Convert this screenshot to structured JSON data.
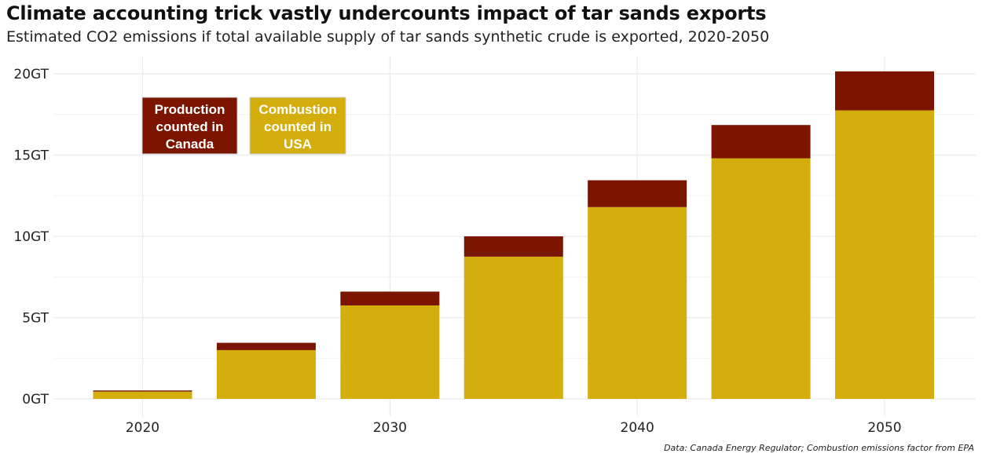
{
  "title": "Climate accounting trick vastly undercounts impact of tar sands exports",
  "subtitle": "Estimated CO2 emissions if total available supply of tar sands synthetic crude is exported, 2020-2050",
  "caption": "Data: Canada Energy Regulator; Combustion emissions factor from EPA",
  "colors": {
    "production": "#7b1500",
    "combustion": "#d4ae0c",
    "grid": "#ebebeb"
  },
  "chart_data": {
    "type": "bar",
    "stacked": true,
    "x": [
      2020,
      2025,
      2030,
      2035,
      2040,
      2045,
      2050
    ],
    "series": [
      {
        "name": "Combustion counted in USA",
        "color": "#d4ae0c",
        "values": [
          0.45,
          3.0,
          5.75,
          8.75,
          11.8,
          14.8,
          17.75
        ]
      },
      {
        "name": "Production counted in Canada",
        "color": "#7b1500",
        "values": [
          0.07,
          0.45,
          0.85,
          1.25,
          1.65,
          2.05,
          2.4
        ]
      }
    ],
    "y_ticks": [
      0,
      5,
      10,
      15,
      20
    ],
    "y_tick_labels": [
      "0GT",
      "5GT",
      "10GT",
      "15GT",
      "20GT"
    ],
    "x_ticks": [
      2020,
      2030,
      2040,
      2050
    ],
    "x_tick_labels": [
      "2020",
      "2030",
      "2040",
      "2050"
    ],
    "ylim": [
      0,
      21
    ],
    "xlim": [
      2017,
      2054
    ],
    "grid": true,
    "legend": {
      "placement": "top-left",
      "entries": [
        {
          "lines": [
            "Production",
            "counted in",
            "Canada"
          ],
          "color": "#7b1500"
        },
        {
          "lines": [
            "Combustion",
            "counted in",
            "USA"
          ],
          "color": "#d4ae0c"
        }
      ]
    }
  }
}
